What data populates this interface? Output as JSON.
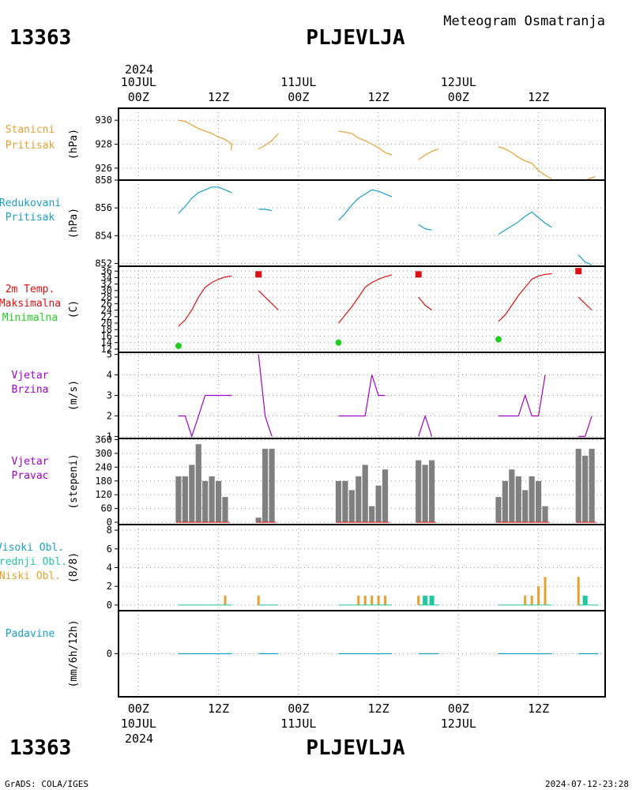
{
  "header": {
    "station_id": "13363",
    "station_name": "PLJEVLJA",
    "subtitle": "Meteogram Osmatranja",
    "footer_left": "GrADS: COLA/IGES",
    "footer_right": "2024-07-12-23:28"
  },
  "time_axis": {
    "year": "2024",
    "ticks": [
      {
        "hour": 0,
        "label": "00Z",
        "date": "10JUL"
      },
      {
        "hour": 12,
        "label": "12Z",
        "date": ""
      },
      {
        "hour": 24,
        "label": "00Z",
        "date": "11JUL"
      },
      {
        "hour": 36,
        "label": "12Z",
        "date": ""
      },
      {
        "hour": 48,
        "label": "00Z",
        "date": "12JUL"
      },
      {
        "hour": 60,
        "label": "12Z",
        "date": ""
      }
    ],
    "range": [
      -3,
      70
    ]
  },
  "colors": {
    "pressure": "#e6a030",
    "reduced": "#1aa0c8",
    "tmax": "#e01010",
    "tmin": "#20d020",
    "wind": "#a000c8",
    "bars": "#808080",
    "high_cloud": "#1aa0c8",
    "mid_cloud": "#20c8a0",
    "low_cloud": "#e6a030",
    "precip": "#1aa0c8"
  },
  "chart_data": [
    {
      "type": "line",
      "id": "station_pressure",
      "labels": [
        "Stanicni",
        "Pritisak"
      ],
      "ylabel": "(hPa)",
      "ylim": [
        925,
        931
      ],
      "yticks": [
        926,
        928,
        930
      ],
      "segments": [
        [
          [
            6,
            930
          ],
          [
            7,
            929.9
          ],
          [
            8,
            929.6
          ],
          [
            9,
            929.3
          ],
          [
            10,
            929.1
          ],
          [
            11,
            928.9
          ],
          [
            12,
            928.6
          ],
          [
            13,
            928.4
          ],
          [
            14,
            928.0
          ],
          [
            13.9,
            927.5
          ]
        ],
        [
          [
            18,
            927.6
          ],
          [
            19,
            927.9
          ],
          [
            20,
            928.3
          ],
          [
            21,
            928.9
          ]
        ],
        [
          [
            30,
            929.1
          ],
          [
            31,
            929.0
          ],
          [
            32,
            928.9
          ],
          [
            33,
            928.5
          ],
          [
            34,
            928.3
          ],
          [
            35,
            928.0
          ],
          [
            36,
            927.7
          ],
          [
            37,
            927.3
          ],
          [
            38,
            927.1
          ]
        ],
        [
          [
            42,
            926.7
          ],
          [
            43,
            927.1
          ],
          [
            44,
            927.4
          ],
          [
            45,
            927.6
          ]
        ],
        [
          [
            54,
            927.8
          ],
          [
            55,
            927.6
          ],
          [
            56,
            927.3
          ],
          [
            57,
            926.9
          ],
          [
            58,
            926.6
          ],
          [
            59,
            926.4
          ],
          [
            60,
            925.8
          ],
          [
            61,
            925.4
          ],
          [
            62,
            925.1
          ]
        ],
        [
          [
            66,
            925.0
          ],
          [
            67,
            925.0
          ],
          [
            68,
            925.2
          ],
          [
            68.5,
            925.3
          ]
        ]
      ]
    },
    {
      "type": "line",
      "id": "reduced_pressure",
      "labels": [
        "Redukovani",
        "Pritisak"
      ],
      "ylabel": "(hPa)",
      "ylim": [
        851.8,
        858
      ],
      "yticks": [
        852,
        854,
        856,
        858
      ],
      "segments": [
        [
          [
            6,
            855.6
          ],
          [
            7,
            856.1
          ],
          [
            8,
            856.7
          ],
          [
            9,
            857.1
          ],
          [
            10,
            857.3
          ],
          [
            11,
            857.5
          ],
          [
            12,
            857.5
          ],
          [
            13,
            857.3
          ],
          [
            14,
            857.1
          ]
        ],
        [
          [
            18,
            855.9
          ],
          [
            19,
            855.9
          ],
          [
            20,
            855.8
          ]
        ],
        [
          [
            30,
            855.1
          ],
          [
            31,
            855.6
          ],
          [
            32,
            856.2
          ],
          [
            33,
            856.7
          ],
          [
            34,
            857.0
          ],
          [
            35,
            857.3
          ],
          [
            36,
            857.2
          ],
          [
            37,
            857.0
          ],
          [
            38,
            856.8
          ]
        ],
        [
          [
            42,
            854.8
          ],
          [
            43,
            854.5
          ],
          [
            44,
            854.4
          ]
        ],
        [
          [
            54,
            854.1
          ],
          [
            55,
            854.4
          ],
          [
            56,
            854.7
          ],
          [
            57,
            855.0
          ],
          [
            58,
            855.4
          ],
          [
            59,
            855.7
          ],
          [
            60,
            855.3
          ],
          [
            61,
            854.9
          ],
          [
            62,
            854.6
          ]
        ],
        [
          [
            66,
            852.6
          ],
          [
            67,
            852.1
          ],
          [
            68,
            851.9
          ]
        ]
      ]
    },
    {
      "type": "line",
      "id": "temperature",
      "labels": [
        "2m Temp.",
        "Maksimalna",
        "Minimalna"
      ],
      "ylabel": "(C)",
      "ylim": [
        11,
        37.5
      ],
      "yticks": [
        12,
        14,
        16,
        18,
        20,
        22,
        24,
        26,
        28,
        30,
        32,
        34,
        36
      ],
      "segments": [
        [
          [
            6,
            19
          ],
          [
            7,
            21
          ],
          [
            8,
            24
          ],
          [
            9,
            28
          ],
          [
            10,
            31
          ],
          [
            11,
            32.5
          ],
          [
            12,
            33.5
          ],
          [
            13,
            34.2
          ],
          [
            14,
            34.5
          ]
        ],
        [
          [
            18,
            30
          ],
          [
            19,
            28
          ],
          [
            20,
            26
          ],
          [
            21,
            24
          ]
        ],
        [
          [
            30,
            20
          ],
          [
            31,
            22.5
          ],
          [
            32,
            25
          ],
          [
            33,
            28
          ],
          [
            34,
            31
          ],
          [
            35,
            32.5
          ],
          [
            36,
            33.5
          ],
          [
            37,
            34.3
          ],
          [
            38,
            34.8
          ]
        ],
        [
          [
            42,
            28
          ],
          [
            43,
            25.5
          ],
          [
            44,
            24
          ]
        ],
        [
          [
            54,
            20.5
          ],
          [
            55,
            22.5
          ],
          [
            56,
            25.5
          ],
          [
            57,
            28.5
          ],
          [
            58,
            31
          ],
          [
            59,
            33.5
          ],
          [
            60,
            34.5
          ],
          [
            61,
            35
          ],
          [
            62,
            35.2
          ]
        ],
        [
          [
            66,
            28
          ],
          [
            67,
            26
          ],
          [
            68,
            24
          ]
        ]
      ],
      "max_points": [
        [
          18,
          35
        ],
        [
          42,
          35
        ],
        [
          66,
          36
        ]
      ],
      "min_points": [
        [
          6,
          13
        ],
        [
          30,
          14
        ],
        [
          54,
          15
        ]
      ]
    },
    {
      "type": "line",
      "id": "wind_speed",
      "labels": [
        "Vjetar",
        "Brzina"
      ],
      "ylabel": "(m/s)",
      "ylim": [
        0.9,
        5.1
      ],
      "yticks": [
        1,
        2,
        3,
        4,
        5
      ],
      "segments": [
        [
          [
            6,
            2
          ],
          [
            7,
            2
          ],
          [
            8,
            1
          ],
          [
            9,
            2
          ],
          [
            10,
            3
          ],
          [
            11,
            3
          ],
          [
            12,
            3
          ],
          [
            13,
            3
          ],
          [
            14,
            3
          ]
        ],
        [
          [
            18,
            5
          ],
          [
            19,
            2
          ],
          [
            20,
            1
          ]
        ],
        [
          [
            30,
            2
          ],
          [
            31,
            2
          ],
          [
            32,
            2
          ],
          [
            33,
            2
          ],
          [
            34,
            2
          ],
          [
            35,
            4
          ],
          [
            36,
            3
          ],
          [
            37,
            3
          ]
        ],
        [
          [
            42,
            1
          ],
          [
            43,
            2
          ],
          [
            44,
            1
          ]
        ],
        [
          [
            54,
            2
          ],
          [
            55,
            2
          ],
          [
            56,
            2
          ],
          [
            57,
            2
          ],
          [
            58,
            3
          ],
          [
            59,
            2
          ],
          [
            60,
            2
          ],
          [
            61,
            4
          ]
        ],
        [
          [
            66,
            1
          ],
          [
            67,
            1
          ],
          [
            68,
            2
          ]
        ]
      ]
    },
    {
      "type": "bar",
      "id": "wind_direction",
      "labels": [
        "Vjetar",
        "Pravac"
      ],
      "ylabel": "(stepeni)",
      "ylim": [
        -10,
        365
      ],
      "yticks": [
        0,
        60,
        120,
        180,
        240,
        300,
        360
      ],
      "x": [
        6,
        7,
        8,
        9,
        10,
        11,
        12,
        13,
        18,
        19,
        20,
        30,
        31,
        32,
        33,
        34,
        35,
        36,
        37,
        42,
        43,
        44,
        54,
        55,
        56,
        57,
        58,
        59,
        60,
        61,
        66,
        67,
        68
      ],
      "values": [
        200,
        200,
        250,
        340,
        180,
        200,
        180,
        110,
        20,
        320,
        320,
        180,
        180,
        140,
        200,
        250,
        70,
        160,
        230,
        270,
        250,
        270,
        110,
        180,
        230,
        200,
        140,
        200,
        180,
        70,
        320,
        290,
        320
      ]
    },
    {
      "type": "bar",
      "id": "clouds",
      "labels": [
        "Visoki Obl.",
        "Srednji Obl.",
        "Niski Obl."
      ],
      "ylabel": "(8/8)",
      "ylim": [
        -0.6,
        8.6
      ],
      "yticks": [
        0,
        2,
        4,
        6,
        8
      ],
      "low": [
        [
          13,
          1
        ],
        [
          18,
          1
        ],
        [
          33,
          1
        ],
        [
          34,
          1
        ],
        [
          35,
          1
        ],
        [
          36,
          1
        ],
        [
          37,
          1
        ],
        [
          42,
          1
        ],
        [
          58,
          1
        ],
        [
          59,
          1
        ],
        [
          60,
          2
        ],
        [
          61,
          3
        ],
        [
          66,
          3
        ],
        [
          67,
          1
        ]
      ],
      "mid": [
        [
          43,
          1
        ],
        [
          44,
          1
        ],
        [
          67,
          1
        ]
      ]
    },
    {
      "type": "line",
      "id": "precipitation",
      "labels": [
        "Padavine"
      ],
      "ylabel": "(mm/6h/12h)",
      "yticks": [
        0
      ],
      "segments": [
        [
          [
            6,
            0
          ],
          [
            14,
            0
          ]
        ],
        [
          [
            18,
            0
          ],
          [
            21,
            0
          ]
        ],
        [
          [
            30,
            0
          ],
          [
            38,
            0
          ]
        ],
        [
          [
            42,
            0
          ],
          [
            45,
            0
          ]
        ],
        [
          [
            54,
            0
          ],
          [
            62,
            0
          ]
        ],
        [
          [
            66,
            0
          ],
          [
            69,
            0
          ]
        ]
      ]
    }
  ]
}
